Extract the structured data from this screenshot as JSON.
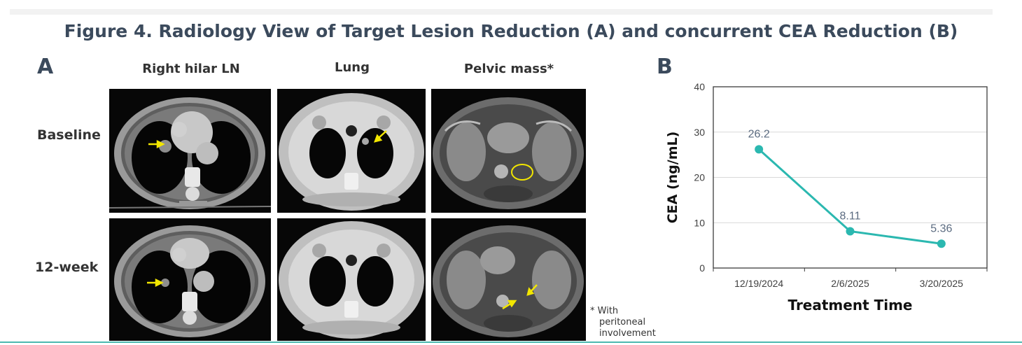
{
  "figure_title": "Figure 4. Radiology View of Target Lesion Reduction (A) and concurrent CEA Reduction (B)",
  "panel_a": {
    "letter": "A",
    "columns": [
      "Right hilar LN",
      "Lung",
      "Pelvic mass*"
    ],
    "rows": [
      "Baseline",
      "12-week"
    ],
    "footnote": "* With peritoneal involvement",
    "footnote_lines": [
      "* With",
      "peritoneal",
      "involvement"
    ],
    "images": [
      {
        "name": "ct-hilar-baseline",
        "type": "chest-mediastinal"
      },
      {
        "name": "ct-lung-baseline",
        "type": "chest-lung-window"
      },
      {
        "name": "mri-pelvis-baseline",
        "type": "pelvis"
      },
      {
        "name": "ct-hilar-12week",
        "type": "chest-mediastinal"
      },
      {
        "name": "ct-lung-12week",
        "type": "chest-lung-window"
      },
      {
        "name": "mri-pelvis-12week",
        "type": "pelvis"
      }
    ],
    "marker_color": "#f2e600"
  },
  "panel_b": {
    "letter": "B"
  },
  "chart_data": {
    "type": "line",
    "categories": [
      "12/19/2024",
      "2/6/2025",
      "3/20/2025"
    ],
    "series": [
      {
        "values": [
          26.2,
          8.11,
          5.36
        ],
        "labels": [
          "26.2",
          "8.11",
          "5.36"
        ],
        "color": "#2bb8b0"
      }
    ],
    "ylim": [
      0,
      40
    ],
    "yticks": [
      0,
      10,
      20,
      30,
      40
    ],
    "ylabel": "CEA (ng/mL)",
    "xlabel": "Treatment Time",
    "grid": true,
    "legend": "none"
  }
}
